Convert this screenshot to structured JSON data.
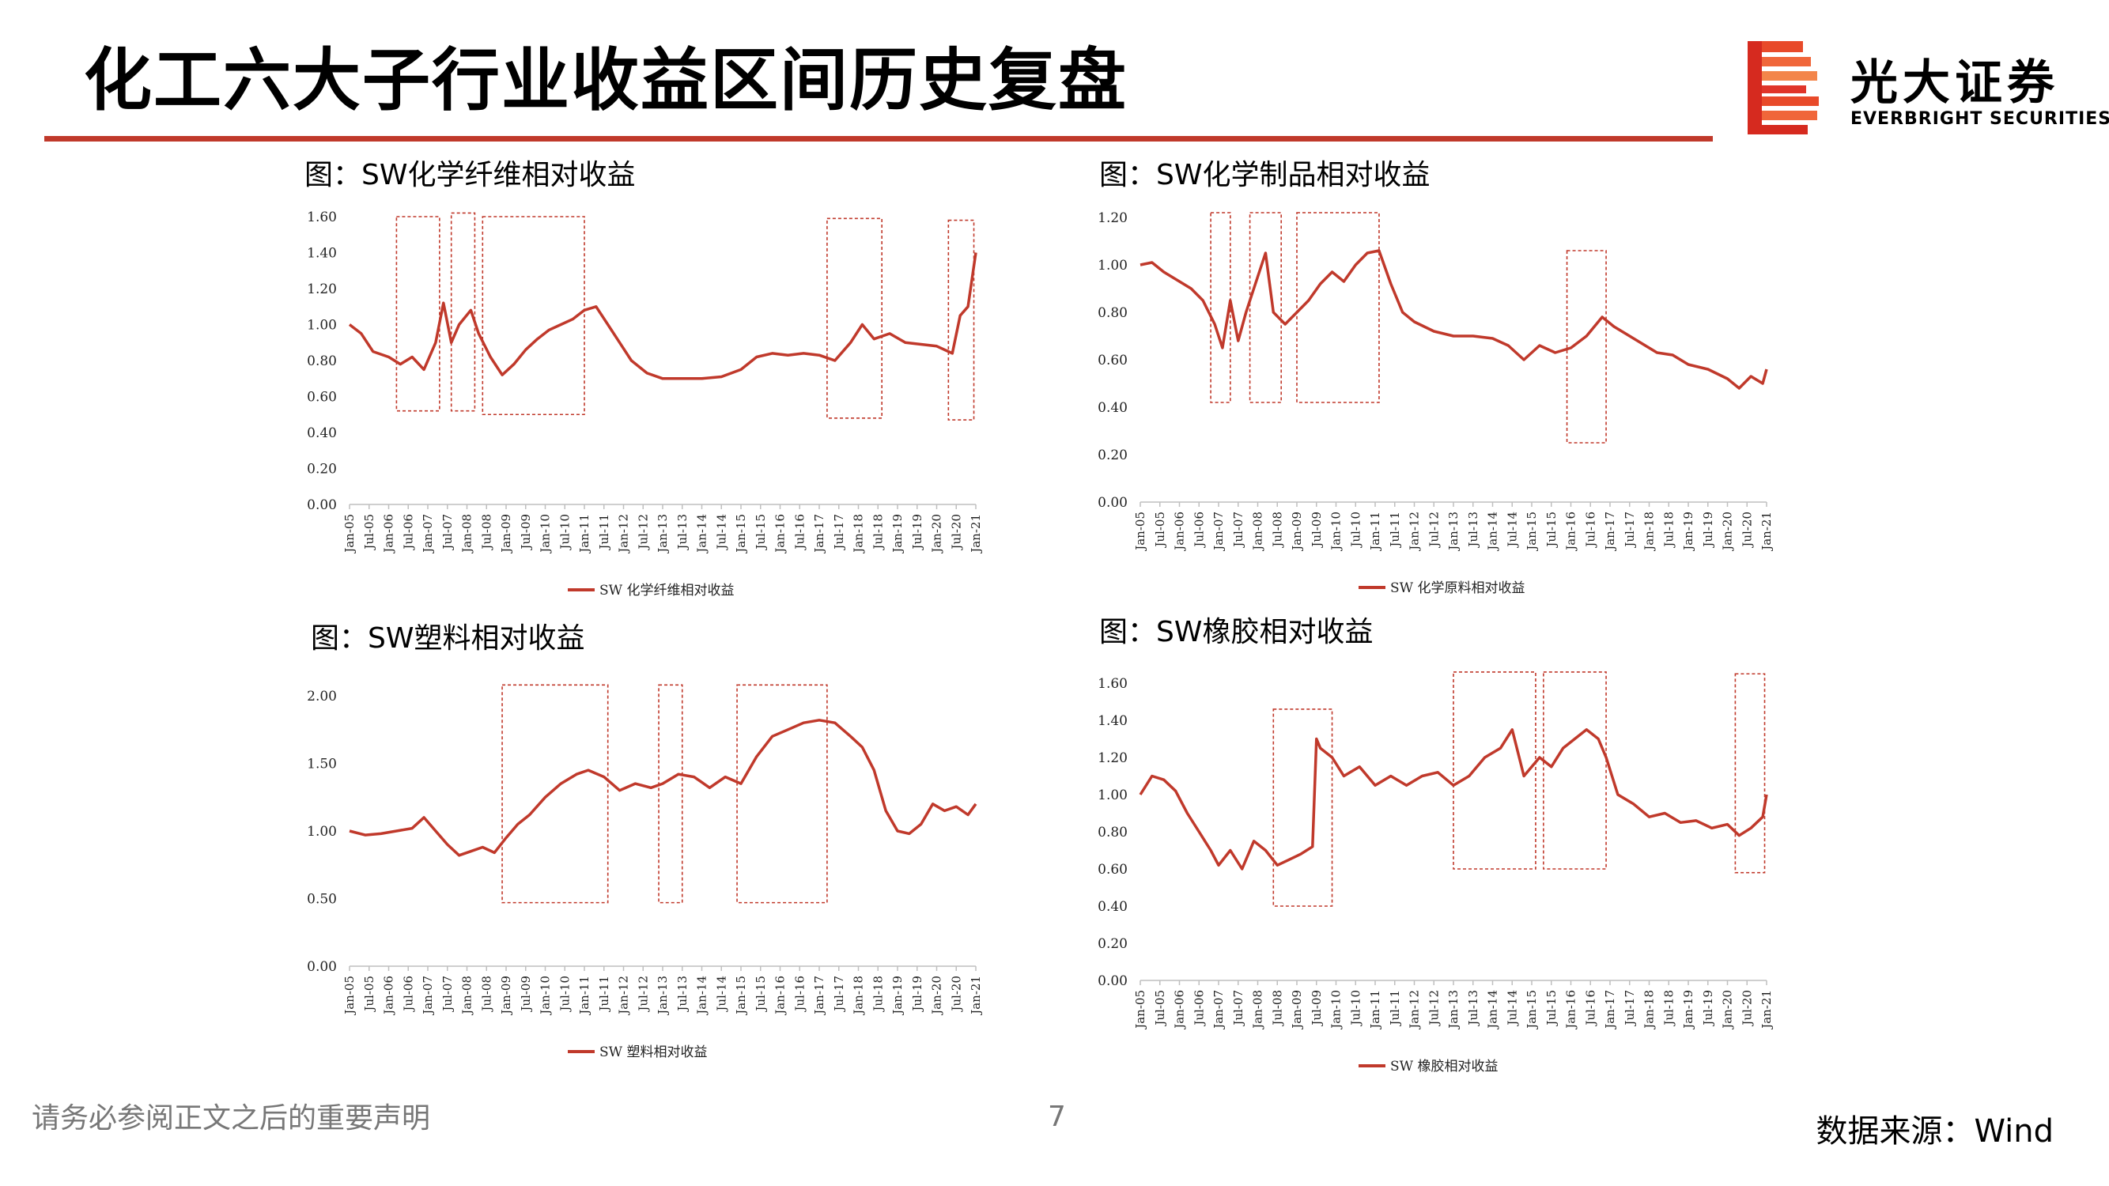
{
  "page": {
    "title": "化工六大子行业收益区间历史复盘",
    "footer_notice": "请务必参阅正文之后的重要声明",
    "page_number": "7",
    "source": "数据来源：Wind",
    "accent_color": "#c0392b"
  },
  "brand": {
    "name_cn": "光大证券",
    "name_en": "EVERBRIGHT SECURITIES",
    "logo_icon": "everbright-logo-icon"
  },
  "x_ticks": [
    "Jan-05",
    "Jul-05",
    "Jan-06",
    "Jul-06",
    "Jan-07",
    "Jul-07",
    "Jan-08",
    "Jul-08",
    "Jan-09",
    "Jul-09",
    "Jan-10",
    "Jul-10",
    "Jan-11",
    "Jul-11",
    "Jan-12",
    "Jul-12",
    "Jan-13",
    "Jul-13",
    "Jan-14",
    "Jul-14",
    "Jan-15",
    "Jul-15",
    "Jan-16",
    "Jul-16",
    "Jan-17",
    "Jul-17",
    "Jan-18",
    "Jul-18",
    "Jan-19",
    "Jul-19",
    "Jan-20",
    "Jul-20",
    "Jan-21"
  ],
  "chart_data": [
    {
      "type": "line",
      "title": "图：SW化学纤维相对收益",
      "series": [
        {
          "name": "SW 化学纤维相对收益",
          "color": "#c0392b",
          "x": [
            2005.0,
            2005.3,
            2005.6,
            2006.0,
            2006.3,
            2006.6,
            2006.9,
            2007.2,
            2007.4,
            2007.6,
            2007.8,
            2008.1,
            2008.3,
            2008.6,
            2008.9,
            2009.2,
            2009.5,
            2009.8,
            2010.1,
            2010.4,
            2010.7,
            2011.0,
            2011.3,
            2011.6,
            2011.9,
            2012.2,
            2012.6,
            2013.0,
            2013.5,
            2014.0,
            2014.5,
            2015.0,
            2015.4,
            2015.8,
            2016.2,
            2016.6,
            2017.0,
            2017.4,
            2017.8,
            2018.1,
            2018.4,
            2018.8,
            2019.2,
            2019.6,
            2020.0,
            2020.4,
            2020.6,
            2020.8,
            2021.0
          ],
          "y": [
            1.0,
            0.95,
            0.85,
            0.82,
            0.78,
            0.82,
            0.75,
            0.9,
            1.12,
            0.9,
            1.0,
            1.08,
            0.95,
            0.82,
            0.72,
            0.78,
            0.86,
            0.92,
            0.97,
            1.0,
            1.03,
            1.08,
            1.1,
            1.0,
            0.9,
            0.8,
            0.73,
            0.7,
            0.7,
            0.7,
            0.71,
            0.75,
            0.82,
            0.84,
            0.83,
            0.84,
            0.83,
            0.8,
            0.9,
            1.0,
            0.92,
            0.95,
            0.9,
            0.89,
            0.88,
            0.84,
            1.05,
            1.1,
            1.4
          ]
        }
      ],
      "xlim": [
        2005.0,
        2021.0
      ],
      "ylim": [
        0,
        1.6
      ],
      "y_ticks": [
        "0.00",
        "0.20",
        "0.40",
        "0.60",
        "0.80",
        "1.00",
        "1.20",
        "1.40",
        "1.60"
      ],
      "boxes": [
        [
          2006.2,
          2007.3,
          0.52,
          1.6
        ],
        [
          2007.6,
          2008.2,
          0.52,
          1.62
        ],
        [
          2008.4,
          2011.0,
          0.5,
          1.6
        ],
        [
          2017.2,
          2018.6,
          0.48,
          1.59
        ],
        [
          2020.3,
          2020.95,
          0.47,
          1.58
        ]
      ]
    },
    {
      "type": "line",
      "title": "图：SW化学制品相对收益",
      "series": [
        {
          "name": "SW 化学原料相对收益",
          "color": "#c0392b",
          "x": [
            2005.0,
            2005.3,
            2005.6,
            2006.0,
            2006.3,
            2006.6,
            2006.9,
            2007.1,
            2007.3,
            2007.5,
            2007.7,
            2008.0,
            2008.2,
            2008.4,
            2008.7,
            2009.0,
            2009.3,
            2009.6,
            2009.9,
            2010.2,
            2010.5,
            2010.8,
            2011.1,
            2011.4,
            2011.7,
            2012.0,
            2012.5,
            2013.0,
            2013.5,
            2014.0,
            2014.4,
            2014.8,
            2015.2,
            2015.6,
            2016.0,
            2016.4,
            2016.8,
            2017.1,
            2017.4,
            2017.8,
            2018.2,
            2018.6,
            2019.0,
            2019.5,
            2020.0,
            2020.3,
            2020.6,
            2020.9,
            2021.0
          ],
          "y": [
            1.0,
            1.01,
            0.97,
            0.93,
            0.9,
            0.85,
            0.75,
            0.65,
            0.85,
            0.68,
            0.8,
            0.95,
            1.05,
            0.8,
            0.75,
            0.8,
            0.85,
            0.92,
            0.97,
            0.93,
            1.0,
            1.05,
            1.06,
            0.92,
            0.8,
            0.76,
            0.72,
            0.7,
            0.7,
            0.69,
            0.66,
            0.6,
            0.66,
            0.63,
            0.65,
            0.7,
            0.78,
            0.74,
            0.71,
            0.67,
            0.63,
            0.62,
            0.58,
            0.56,
            0.52,
            0.48,
            0.53,
            0.5,
            0.56
          ]
        }
      ],
      "xlim": [
        2005.0,
        2021.0
      ],
      "ylim": [
        0,
        1.2
      ],
      "y_ticks": [
        "0.00",
        "0.20",
        "0.40",
        "0.60",
        "0.80",
        "1.00",
        "1.20"
      ],
      "boxes": [
        [
          2006.8,
          2007.3,
          0.42,
          1.22
        ],
        [
          2007.8,
          2008.6,
          0.42,
          1.22
        ],
        [
          2009.0,
          2011.1,
          0.42,
          1.22
        ],
        [
          2015.9,
          2016.9,
          0.25,
          1.06
        ]
      ]
    },
    {
      "type": "line",
      "title": "图：SW塑料相对收益",
      "series": [
        {
          "name": "SW 塑料相对收益",
          "color": "#c0392b",
          "x": [
            2005.0,
            2005.4,
            2005.8,
            2006.2,
            2006.6,
            2006.9,
            2007.2,
            2007.5,
            2007.8,
            2008.1,
            2008.4,
            2008.7,
            2009.0,
            2009.3,
            2009.6,
            2010.0,
            2010.4,
            2010.8,
            2011.1,
            2011.5,
            2011.9,
            2012.3,
            2012.7,
            2013.0,
            2013.4,
            2013.8,
            2014.2,
            2014.6,
            2015.0,
            2015.4,
            2015.8,
            2016.2,
            2016.6,
            2017.0,
            2017.4,
            2017.8,
            2018.1,
            2018.4,
            2018.7,
            2019.0,
            2019.3,
            2019.6,
            2019.9,
            2020.2,
            2020.5,
            2020.8,
            2021.0
          ],
          "y": [
            1.0,
            0.97,
            0.98,
            1.0,
            1.02,
            1.1,
            1.0,
            0.9,
            0.82,
            0.85,
            0.88,
            0.84,
            0.95,
            1.05,
            1.12,
            1.25,
            1.35,
            1.42,
            1.45,
            1.4,
            1.3,
            1.35,
            1.32,
            1.35,
            1.42,
            1.4,
            1.32,
            1.4,
            1.35,
            1.55,
            1.7,
            1.75,
            1.8,
            1.82,
            1.8,
            1.7,
            1.62,
            1.45,
            1.15,
            1.0,
            0.98,
            1.05,
            1.2,
            1.15,
            1.18,
            1.12,
            1.2
          ]
        }
      ],
      "xlim": [
        2005.0,
        2021.0
      ],
      "ylim": [
        0,
        2.0
      ],
      "y_ticks": [
        "0.00",
        "0.50",
        "1.00",
        "1.50",
        "2.00"
      ],
      "boxes": [
        [
          2008.9,
          2011.6,
          0.47,
          2.08
        ],
        [
          2012.9,
          2013.5,
          0.47,
          2.08
        ],
        [
          2014.9,
          2017.2,
          0.47,
          2.08
        ]
      ]
    },
    {
      "type": "line",
      "title": "图：SW橡胶相对收益",
      "series": [
        {
          "name": "SW 橡胶相对收益",
          "color": "#c0392b",
          "x": [
            2005.0,
            2005.3,
            2005.6,
            2005.9,
            2006.2,
            2006.5,
            2006.8,
            2007.0,
            2007.3,
            2007.6,
            2007.9,
            2008.2,
            2008.5,
            2008.8,
            2009.1,
            2009.4,
            2009.5,
            2009.6,
            2009.9,
            2010.2,
            2010.6,
            2011.0,
            2011.4,
            2011.8,
            2012.2,
            2012.6,
            2013.0,
            2013.4,
            2013.8,
            2014.2,
            2014.5,
            2014.8,
            2015.2,
            2015.5,
            2015.8,
            2016.1,
            2016.4,
            2016.7,
            2016.9,
            2017.2,
            2017.6,
            2018.0,
            2018.4,
            2018.8,
            2019.2,
            2019.6,
            2020.0,
            2020.3,
            2020.6,
            2020.9,
            2021.0
          ],
          "y": [
            1.0,
            1.1,
            1.08,
            1.02,
            0.9,
            0.8,
            0.7,
            0.62,
            0.7,
            0.6,
            0.75,
            0.7,
            0.62,
            0.65,
            0.68,
            0.72,
            1.3,
            1.25,
            1.2,
            1.1,
            1.15,
            1.05,
            1.1,
            1.05,
            1.1,
            1.12,
            1.05,
            1.1,
            1.2,
            1.25,
            1.35,
            1.1,
            1.2,
            1.15,
            1.25,
            1.3,
            1.35,
            1.3,
            1.2,
            1.0,
            0.95,
            0.88,
            0.9,
            0.85,
            0.86,
            0.82,
            0.84,
            0.78,
            0.82,
            0.88,
            1.0
          ]
        }
      ],
      "xlim": [
        2005.0,
        2021.0
      ],
      "ylim": [
        0,
        1.6
      ],
      "y_ticks": [
        "0.00",
        "0.20",
        "0.40",
        "0.60",
        "0.80",
        "1.00",
        "1.20",
        "1.40",
        "1.60"
      ],
      "boxes": [
        [
          2008.4,
          2009.9,
          0.4,
          1.46
        ],
        [
          2013.0,
          2015.1,
          0.6,
          1.66
        ],
        [
          2015.3,
          2016.9,
          0.6,
          1.66
        ],
        [
          2020.2,
          2020.95,
          0.58,
          1.65
        ]
      ]
    }
  ]
}
